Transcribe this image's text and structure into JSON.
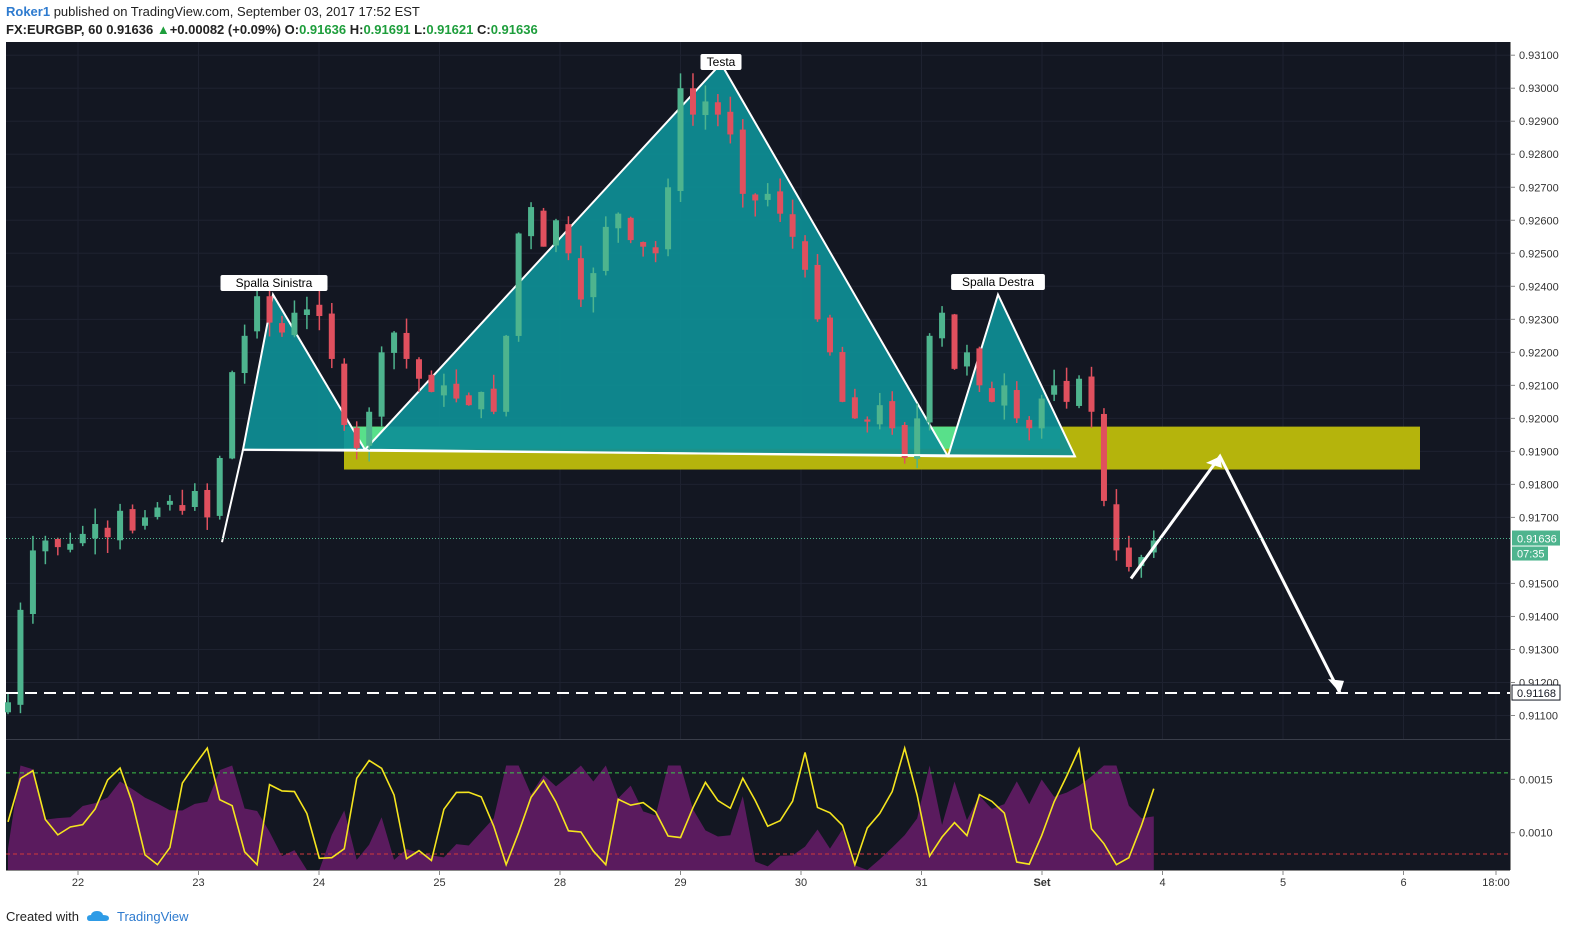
{
  "header": {
    "author": "Roker1",
    "published": "published on TradingView.com, September 03, 2017 17:52 EST",
    "symbol": "FX:EURGBP, 60",
    "last": "0.91636",
    "change": "+0.00082 (+0.09%)",
    "o_label": "O:",
    "o_value": "0.91636",
    "h_label": "H:",
    "h_value": "0.91691",
    "l_label": "L:",
    "l_value": "0.91621",
    "c_label": "C:",
    "c_value": "0.91636"
  },
  "footer": {
    "created": "Created with",
    "brand": "TradingView"
  },
  "colors": {
    "background": "#131722",
    "up": "#4eb48e",
    "down": "#e0505e",
    "pattern_fill": "#0e8f96",
    "neckline_zone": "#58e08a",
    "resistance_zone": "#b5b40c",
    "oscillator": "#f5e51e",
    "histogram": "#5a1b5e"
  },
  "chart_data": [
    {
      "type": "candlestick",
      "price_axis": {
        "ylim": [
          0.9105,
          0.9314
        ],
        "ticks": [
          "0.93100",
          "0.93000",
          "0.92900",
          "0.92800",
          "0.92700",
          "0.92600",
          "0.92500",
          "0.92400",
          "0.92300",
          "0.92200",
          "0.92100",
          "0.92000",
          "0.91900",
          "0.91800",
          "0.91700",
          "0.91500",
          "0.91400",
          "0.91300",
          "0.91200",
          "0.91100"
        ],
        "current_price": "0.91636",
        "countdown": "07:35",
        "target_price": "0.91168"
      },
      "time_axis": {
        "labels": [
          "22",
          "23",
          "24",
          "25",
          "28",
          "29",
          "30",
          "31",
          "Set",
          "4",
          "5",
          "6",
          "18:00"
        ]
      },
      "series": {
        "close_path": [
          [
            0,
            0.9114
          ],
          [
            1,
            0.9142
          ],
          [
            2,
            0.916
          ],
          [
            3,
            0.9163
          ],
          [
            4,
            0.9161
          ],
          [
            5,
            0.9162
          ],
          [
            6,
            0.9165
          ],
          [
            7,
            0.9168
          ],
          [
            8,
            0.9164
          ],
          [
            9,
            0.9172
          ],
          [
            10,
            0.9166
          ],
          [
            11,
            0.917
          ],
          [
            12,
            0.9173
          ],
          [
            13,
            0.9175
          ],
          [
            14,
            0.9172
          ],
          [
            15,
            0.9178
          ],
          [
            16,
            0.917
          ],
          [
            17,
            0.9188
          ],
          [
            18,
            0.9214
          ],
          [
            19,
            0.9225
          ],
          [
            20,
            0.9237
          ],
          [
            21,
            0.9229
          ],
          [
            22,
            0.9226
          ],
          [
            23,
            0.9232
          ],
          [
            24,
            0.9233
          ],
          [
            25,
            0.9231
          ],
          [
            26,
            0.9218
          ],
          [
            27,
            0.9198
          ],
          [
            28,
            0.9191
          ],
          [
            29,
            0.9202
          ],
          [
            30,
            0.922
          ],
          [
            31,
            0.9226
          ],
          [
            32,
            0.9218
          ],
          [
            33,
            0.9212
          ],
          [
            34,
            0.9208
          ],
          [
            35,
            0.921
          ],
          [
            36,
            0.9206
          ],
          [
            37,
            0.9204
          ],
          [
            38,
            0.9208
          ],
          [
            39,
            0.9202
          ],
          [
            40,
            0.9225
          ],
          [
            41,
            0.9256
          ],
          [
            42,
            0.9264
          ],
          [
            43,
            0.9252
          ],
          [
            44,
            0.926
          ],
          [
            45,
            0.925
          ],
          [
            46,
            0.9236
          ],
          [
            47,
            0.9244
          ],
          [
            48,
            0.9258
          ],
          [
            49,
            0.9262
          ],
          [
            50,
            0.9254
          ],
          [
            51,
            0.9252
          ],
          [
            52,
            0.925
          ],
          [
            53,
            0.927
          ],
          [
            54,
            0.93
          ],
          [
            55,
            0.9292
          ],
          [
            56,
            0.9296
          ],
          [
            57,
            0.9292
          ],
          [
            58,
            0.9286
          ],
          [
            59,
            0.9268
          ],
          [
            60,
            0.9266
          ],
          [
            61,
            0.9268
          ],
          [
            62,
            0.9262
          ],
          [
            63,
            0.9255
          ],
          [
            64,
            0.9245
          ],
          [
            65,
            0.923
          ],
          [
            66,
            0.922
          ],
          [
            67,
            0.9205
          ],
          [
            68,
            0.92
          ],
          [
            69,
            0.9199
          ],
          [
            70,
            0.9204
          ],
          [
            71,
            0.9197
          ],
          [
            72,
            0.9188
          ],
          [
            73,
            0.92
          ],
          [
            74,
            0.9225
          ],
          [
            75,
            0.9232
          ],
          [
            76,
            0.9215
          ],
          [
            77,
            0.922
          ],
          [
            78,
            0.921
          ],
          [
            79,
            0.9205
          ],
          [
            80,
            0.921
          ],
          [
            81,
            0.92
          ],
          [
            82,
            0.9197
          ],
          [
            83,
            0.9206
          ],
          [
            84,
            0.921
          ],
          [
            85,
            0.9205
          ],
          [
            86,
            0.9212
          ],
          [
            87,
            0.9202
          ],
          [
            88,
            0.9175
          ],
          [
            89,
            0.916
          ],
          [
            90,
            0.9155
          ],
          [
            91,
            0.9158
          ],
          [
            92,
            0.9163
          ]
        ]
      },
      "annotations": [
        {
          "label": "Spalla Sinistra"
        },
        {
          "label": "Testa"
        },
        {
          "label": "Spalla Destra"
        }
      ]
    },
    {
      "type": "line",
      "price_axis": {
        "ylim": [
          0.00065,
          0.00185
        ],
        "ticks": [
          "0.0015",
          "0.0010"
        ],
        "upper_band": 0.00156,
        "lower_band": 0.0008
      }
    }
  ]
}
